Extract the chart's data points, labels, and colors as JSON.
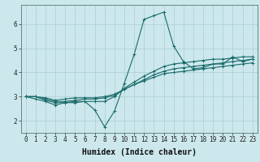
{
  "xlabel": "Humidex (Indice chaleur)",
  "bg_color": "#cce8ec",
  "grid_color": "#aacdd4",
  "line_color": "#1a6b6b",
  "x_values": [
    0,
    1,
    2,
    3,
    4,
    5,
    6,
    7,
    8,
    9,
    10,
    11,
    12,
    13,
    14,
    15,
    16,
    17,
    18,
    19,
    20,
    21,
    22,
    23
  ],
  "line1": [
    3.0,
    2.9,
    2.8,
    2.65,
    2.75,
    2.75,
    2.8,
    2.45,
    1.75,
    2.4,
    3.55,
    4.75,
    6.2,
    6.35,
    6.5,
    5.1,
    4.45,
    4.15,
    4.2,
    4.35,
    4.35,
    4.65,
    4.45,
    4.55
  ],
  "line2": [
    3.0,
    3.0,
    2.85,
    2.75,
    2.75,
    2.8,
    2.8,
    2.8,
    2.8,
    3.0,
    3.35,
    3.6,
    3.85,
    4.05,
    4.25,
    4.35,
    4.4,
    4.45,
    4.5,
    4.55,
    4.55,
    4.6,
    4.65,
    4.65
  ],
  "line3": [
    3.0,
    3.0,
    2.9,
    2.8,
    2.8,
    2.85,
    2.9,
    2.9,
    2.95,
    3.05,
    3.3,
    3.5,
    3.7,
    3.9,
    4.05,
    4.15,
    4.2,
    4.25,
    4.3,
    4.35,
    4.4,
    4.45,
    4.5,
    4.55
  ],
  "line4": [
    3.0,
    3.0,
    2.95,
    2.85,
    2.9,
    2.95,
    2.95,
    2.95,
    3.0,
    3.1,
    3.3,
    3.5,
    3.65,
    3.8,
    3.95,
    4.0,
    4.05,
    4.1,
    4.15,
    4.2,
    4.25,
    4.3,
    4.35,
    4.4
  ],
  "ylim": [
    1.5,
    6.8
  ],
  "yticks": [
    2,
    3,
    4,
    5,
    6
  ],
  "xticks": [
    0,
    1,
    2,
    3,
    4,
    5,
    6,
    7,
    8,
    9,
    10,
    11,
    12,
    13,
    14,
    15,
    16,
    17,
    18,
    19,
    20,
    21,
    22,
    23
  ],
  "tick_fontsize": 5.5,
  "label_fontsize": 7.0
}
